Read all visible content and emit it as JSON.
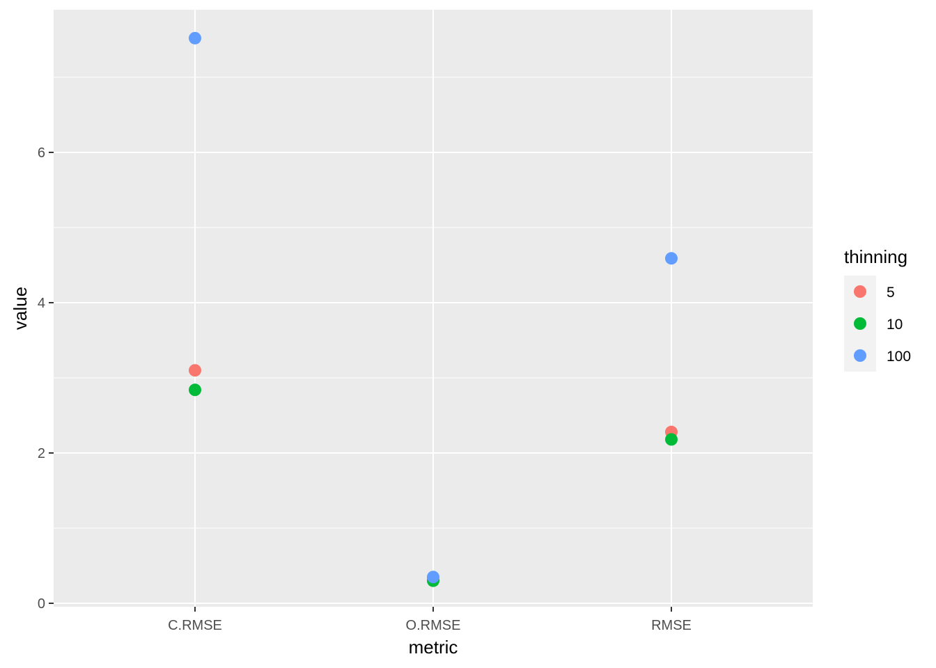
{
  "chart_data": {
    "type": "scatter",
    "title": "",
    "xlabel": "metric",
    "ylabel": "value",
    "categories": [
      "C.RMSE",
      "O.RMSE",
      "RMSE"
    ],
    "ylim": [
      -0.13,
      7.9
    ],
    "yticks": [
      0,
      2,
      4,
      6
    ],
    "grid": true,
    "legend": {
      "title": "thinning",
      "placement": "right"
    },
    "series": [
      {
        "name": "5",
        "color": "#F8766D",
        "values": [
          3.1,
          0.32,
          2.28
        ]
      },
      {
        "name": "10",
        "color": "#00BA38",
        "values": [
          2.84,
          0.3,
          2.18
        ]
      },
      {
        "name": "100",
        "color": "#619CFF",
        "values": [
          7.52,
          0.35,
          4.59
        ]
      }
    ]
  }
}
